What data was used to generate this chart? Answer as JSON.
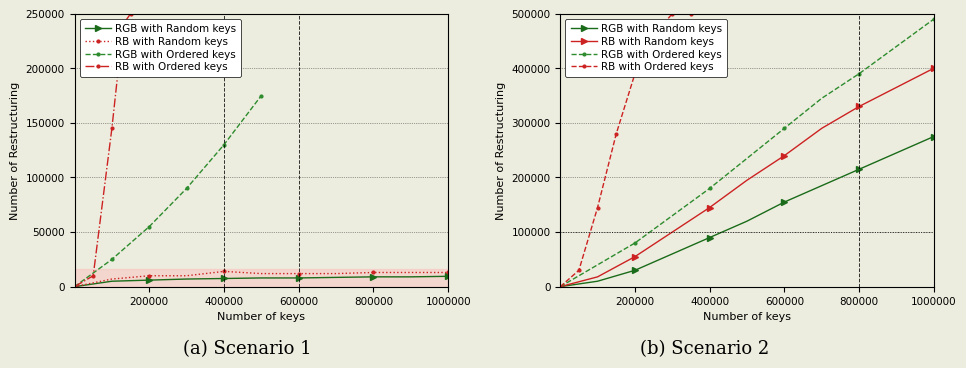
{
  "s1": {
    "xlim": [
      0,
      1000000
    ],
    "ylim": [
      0,
      250000
    ],
    "yticks": [
      0,
      50000,
      100000,
      150000,
      200000,
      250000
    ],
    "xticks": [
      200000,
      400000,
      600000,
      800000,
      1000000
    ],
    "vlines_dashed": [
      400000,
      600000
    ],
    "rgb_random_x": [
      0,
      100000,
      200000,
      300000,
      400000,
      500000,
      600000,
      700000,
      800000,
      900000,
      1000000
    ],
    "rgb_random_y": [
      0,
      5000,
      6000,
      7000,
      7500,
      8000,
      8000,
      8500,
      9000,
      9000,
      9500
    ],
    "rb_random_x": [
      0,
      100000,
      200000,
      300000,
      400000,
      500000,
      600000,
      700000,
      800000,
      900000,
      1000000
    ],
    "rb_random_y": [
      0,
      7000,
      10000,
      10000,
      14000,
      12000,
      12000,
      12000,
      13000,
      13000,
      13000
    ],
    "rgb_ordered_x": [
      0,
      100000,
      200000,
      300000,
      400000,
      500000
    ],
    "rgb_ordered_y": [
      0,
      25000,
      55000,
      90000,
      130000,
      175000
    ],
    "rb_ordered_x": [
      0,
      50000,
      100000,
      130000,
      150000
    ],
    "rb_ordered_y": [
      0,
      10000,
      145000,
      240000,
      250000
    ],
    "xlabel": "Number of keys",
    "ylabel": "Number of Restructuring",
    "caption": "(a) Scenario 1",
    "fill_ymax": 16000
  },
  "s2": {
    "xlim": [
      0,
      1000000
    ],
    "ylim": [
      0,
      500000
    ],
    "yticks": [
      0,
      100000,
      200000,
      300000,
      400000,
      500000
    ],
    "xticks": [
      200000,
      400000,
      600000,
      800000,
      1000000
    ],
    "vlines_dashed": [
      800000
    ],
    "hlines_dotted": [
      100000
    ],
    "rgb_random_x": [
      0,
      100000,
      200000,
      300000,
      400000,
      500000,
      600000,
      700000,
      800000,
      900000,
      1000000
    ],
    "rgb_random_y": [
      0,
      10000,
      30000,
      60000,
      90000,
      120000,
      155000,
      185000,
      215000,
      245000,
      275000
    ],
    "rb_random_x": [
      0,
      100000,
      200000,
      300000,
      400000,
      500000,
      600000,
      700000,
      800000,
      900000,
      1000000
    ],
    "rb_random_y": [
      0,
      18000,
      55000,
      100000,
      145000,
      195000,
      240000,
      290000,
      330000,
      365000,
      400000
    ],
    "rgb_ordered_x": [
      0,
      100000,
      200000,
      300000,
      400000,
      500000,
      600000,
      700000,
      800000,
      900000,
      1000000
    ],
    "rgb_ordered_y": [
      0,
      40000,
      80000,
      130000,
      180000,
      235000,
      290000,
      345000,
      390000,
      440000,
      490000
    ],
    "rb_ordered_x": [
      0,
      50000,
      100000,
      150000,
      200000,
      250000,
      300000,
      350000
    ],
    "rb_ordered_y": [
      0,
      30000,
      145000,
      280000,
      390000,
      460000,
      500000,
      500000
    ],
    "xlabel": "Number of keys",
    "ylabel": "Number of Restructuring",
    "caption": "(b) Scenario 2"
  },
  "legend_s1": [
    "RGB with Random keys",
    "RB with Random keys",
    "RGB with Ordered keys",
    "RB with Ordered keys"
  ],
  "legend_s2": [
    "RGB with Random keys",
    "RB with Random keys",
    "RGB with Ordered keys",
    "RB with Ordered keys"
  ],
  "color_green_dark": "#1a6b1a",
  "color_red": "#cc2222",
  "color_green_med": "#2e8b2e",
  "bg_color": "#ededdf",
  "caption_fontsize": 13,
  "axis_label_fontsize": 8,
  "tick_fontsize": 7.5,
  "legend_fontsize": 7.5
}
